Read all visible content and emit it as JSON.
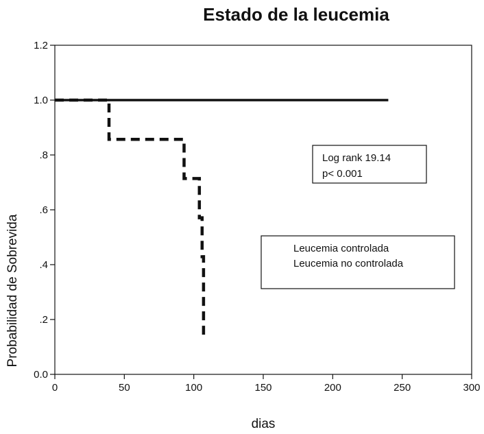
{
  "chart_data": {
    "type": "line",
    "title": "Estado de la leucemia",
    "xlabel": "dias",
    "ylabel": "Probabilidad de Sobrevida",
    "xlim": [
      0,
      300
    ],
    "ylim": [
      0,
      1.2
    ],
    "x_ticks": [
      0,
      50,
      100,
      150,
      200,
      250,
      300
    ],
    "x_tick_labels": [
      "0",
      "50",
      "100",
      "150",
      "200",
      "250",
      "300"
    ],
    "y_ticks": [
      0,
      0.2,
      0.4,
      0.6,
      0.8,
      1.0,
      1.2
    ],
    "y_tick_labels": [
      "0.0",
      ".2",
      ".4",
      ".6",
      ".8",
      "1.0",
      "1.2"
    ],
    "grid": false,
    "series": [
      {
        "name": "Leucemia controlada",
        "style": "solid",
        "color": "#111111",
        "x": [
          0,
          240
        ],
        "y": [
          1.0,
          1.0
        ]
      },
      {
        "name": "Leucemia no controlada",
        "style": "dashed",
        "color": "#111111",
        "x": [
          0,
          39,
          39,
          93,
          93,
          104,
          104,
          106,
          106,
          107,
          107
        ],
        "y": [
          1.0,
          1.0,
          0.857,
          0.857,
          0.714,
          0.714,
          0.571,
          0.571,
          0.429,
          0.429,
          0.143
        ]
      }
    ],
    "annotation": {
      "lines": [
        "Log rank 19.14",
        "p< 0.001"
      ]
    },
    "legend": {
      "position": "right",
      "entries": [
        "Leucemia controlada",
        "Leucemia no controlada"
      ]
    }
  }
}
